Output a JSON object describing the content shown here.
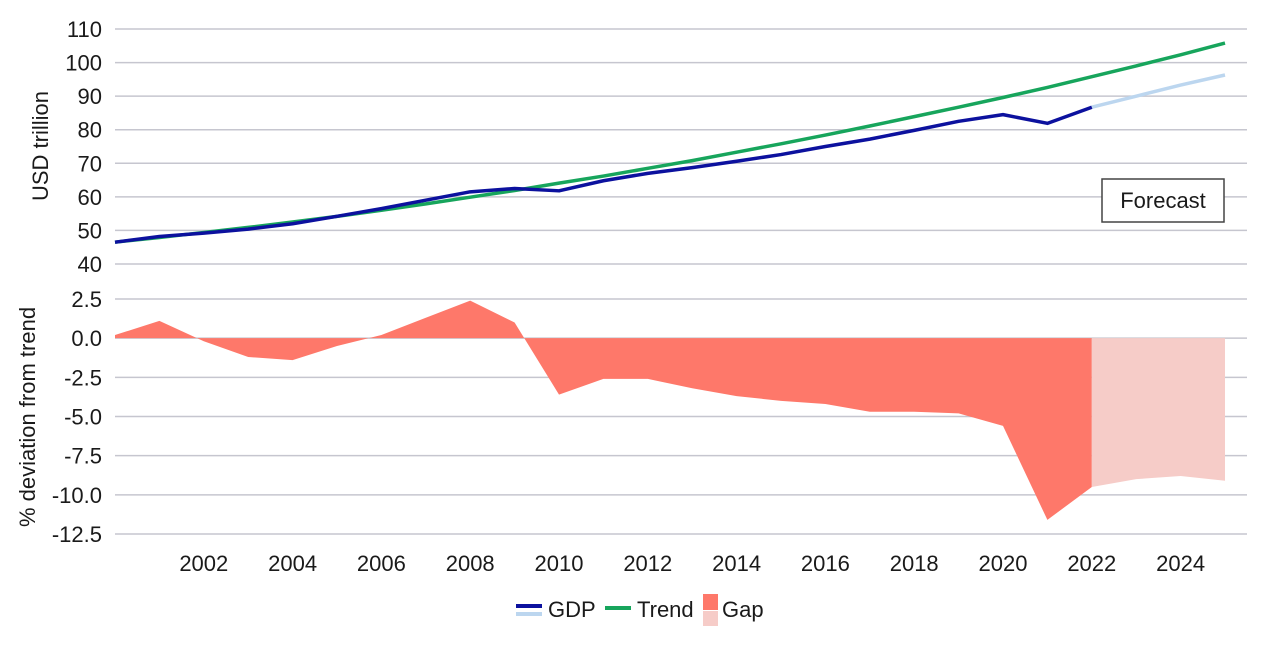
{
  "chart_data": {
    "type": "line",
    "x": [
      2000,
      2001,
      2002,
      2003,
      2004,
      2005,
      2006,
      2007,
      2008,
      2009,
      2010,
      2011,
      2012,
      2013,
      2014,
      2015,
      2016,
      2017,
      2018,
      2019,
      2020,
      2021,
      2022,
      2023,
      2024,
      2025
    ],
    "top_panel": {
      "ylabel": "USD trillion",
      "ylim": [
        40,
        110
      ],
      "yticks": [
        40,
        50,
        60,
        70,
        80,
        90,
        100,
        110
      ],
      "gdp_actual": {
        "x": [
          2000,
          2001,
          2002,
          2003,
          2004,
          2005,
          2006,
          2007,
          2008,
          2009,
          2010,
          2011,
          2012,
          2013,
          2014,
          2015,
          2016,
          2017,
          2018,
          2019,
          2020,
          2021,
          2022
        ],
        "values": [
          46.5,
          48.2,
          49.2,
          50.4,
          52,
          54.2,
          56.5,
          59,
          61.5,
          62.5,
          61.8,
          64.8,
          67,
          68.7,
          70.6,
          72.6,
          75,
          77.2,
          79.8,
          82.5,
          84.5,
          81.9,
          86.7
        ]
      },
      "gdp_forecast": {
        "x": [
          2022,
          2023,
          2024,
          2025
        ],
        "values": [
          86.7,
          90,
          93.3,
          96.3
        ]
      },
      "trend": {
        "x": [
          2000,
          2001,
          2002,
          2003,
          2004,
          2005,
          2006,
          2007,
          2008,
          2009,
          2010,
          2011,
          2012,
          2013,
          2014,
          2015,
          2016,
          2017,
          2018,
          2019,
          2020,
          2021,
          2022,
          2023,
          2024,
          2025
        ],
        "values": [
          46.5,
          47.9,
          49.4,
          50.9,
          52.5,
          54.2,
          56,
          57.9,
          59.9,
          61.9,
          64.1,
          66.2,
          68.5,
          70.8,
          73.3,
          75.8,
          78.4,
          81.1,
          83.9,
          86.7,
          89.6,
          92.6,
          95.8,
          99,
          102.3,
          105.8
        ]
      },
      "annotation": "Forecast"
    },
    "bottom_panel": {
      "ylabel": "% deviation from trend",
      "ylim": [
        -12.5,
        2.5
      ],
      "yticks": [
        2.5,
        0.0,
        -2.5,
        -5.0,
        -7.5,
        -10.0,
        -12.5
      ],
      "ytick_labels": [
        "2.5",
        "0.0",
        "-2.5",
        "-5.0",
        "-7.5",
        "-10.0",
        "-12.5"
      ],
      "gap_actual": {
        "x": [
          2000,
          2001,
          2002,
          2003,
          2004,
          2005,
          2006,
          2007,
          2008,
          2009,
          2010,
          2011,
          2012,
          2013,
          2014,
          2015,
          2016,
          2017,
          2018,
          2019,
          2020,
          2021,
          2022
        ],
        "values": [
          0.2,
          1.1,
          -0.2,
          -1.2,
          -1.4,
          -0.5,
          0.2,
          1.3,
          2.4,
          1,
          -3.6,
          -2.6,
          -2.6,
          -3.2,
          -3.7,
          -4,
          -4.2,
          -4.7,
          -4.7,
          -4.8,
          -5.6,
          -11.6,
          -9.5
        ]
      },
      "gap_forecast": {
        "x": [
          2022,
          2023,
          2024,
          2025
        ],
        "values": [
          -9.5,
          -9,
          -8.8,
          -9.1
        ]
      }
    },
    "xticks": [
      2002,
      2004,
      2006,
      2008,
      2010,
      2012,
      2014,
      2016,
      2018,
      2020,
      2022,
      2024
    ],
    "xtick_labels": [
      "2002",
      "2004",
      "2006",
      "2008",
      "2010",
      "2012",
      "2014",
      "2016",
      "2018",
      "2020",
      "2022",
      "2024"
    ],
    "legend": {
      "placement": "bottom-center",
      "gdp": "GDP",
      "trend": "Trend",
      "gap": "Gap"
    },
    "grid": true,
    "colors": {
      "gdp": "#0c119e",
      "gdp_forecast": "#bcd6ef",
      "trend": "#17a55c",
      "gap": "#fe786a",
      "gap_forecast": "#f6ccc8",
      "grid": "#c6c6cf"
    }
  }
}
